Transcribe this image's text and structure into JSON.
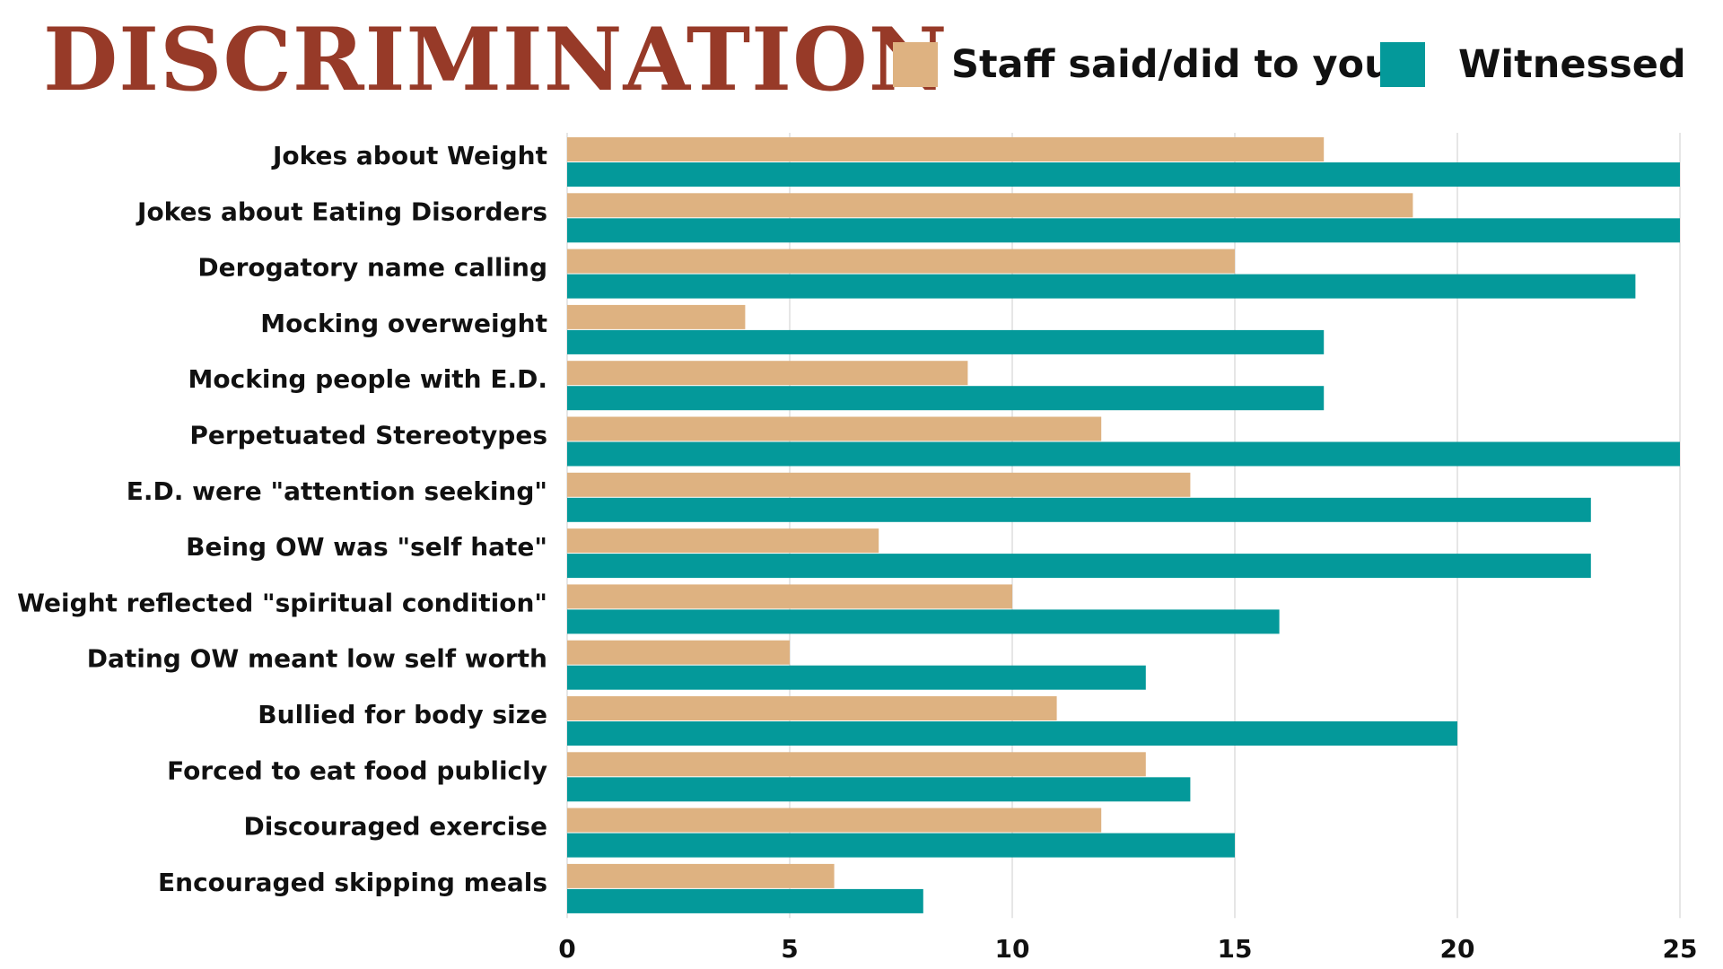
{
  "colors": {
    "title": "#973a28",
    "staff": "#deb281",
    "witnessed": "#04999a",
    "grid": "#dddddd",
    "text": "#111111"
  },
  "chart_data": {
    "type": "bar",
    "orientation": "horizontal",
    "title": "DISCRIMINATION",
    "xlabel": "",
    "ylabel": "",
    "xlim": [
      0,
      25
    ],
    "xticks": [
      "0",
      "5",
      "10",
      "15",
      "20",
      "25"
    ],
    "grid": true,
    "legend_position": "top-right",
    "categories": [
      "Jokes about Weight",
      "Jokes about Eating Disorders",
      "Derogatory name calling",
      "Mocking overweight",
      "Mocking people with E.D.",
      "Perpetuated Stereotypes",
      "E.D. were \"attention seeking\"",
      "Being OW was \"self hate\"",
      "Weight reflected \"spiritual condition\"",
      "Dating OW meant low self worth",
      "Bullied for body size",
      "Forced to eat food publicly",
      "Discouraged exercise",
      "Encouraged skipping meals"
    ],
    "series": [
      {
        "name": "Staff said/did to you",
        "color_key": "staff",
        "values": [
          17,
          19,
          15,
          4,
          9,
          12,
          14,
          7,
          10,
          5,
          11,
          13,
          12,
          6
        ]
      },
      {
        "name": "Witnessed",
        "color_key": "witnessed",
        "values": [
          25,
          25,
          24,
          17,
          17,
          25,
          23,
          23,
          16,
          13,
          20,
          14,
          15,
          8
        ]
      }
    ]
  }
}
